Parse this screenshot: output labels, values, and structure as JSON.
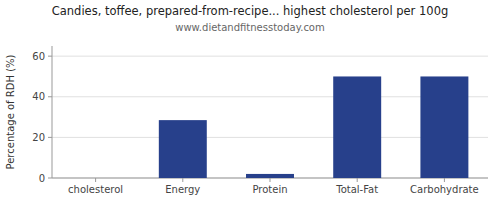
{
  "chart_data": {
    "type": "bar",
    "title": "Candies, toffee, prepared-from-recipe... highest cholesterol per 100g",
    "subtitle": "www.dietandfitnesstoday.com",
    "categories": [
      "cholesterol",
      "Energy",
      "Protein",
      "Total-Fat",
      "Carbohydrate"
    ],
    "values": [
      0,
      28.5,
      2.0,
      50.0,
      50.0
    ],
    "color": "#27408B",
    "ylabel": "Percentage of RDH (%)",
    "ylim": [
      0,
      65
    ],
    "yticks": [
      0,
      20,
      40,
      60
    ],
    "grid": true
  }
}
